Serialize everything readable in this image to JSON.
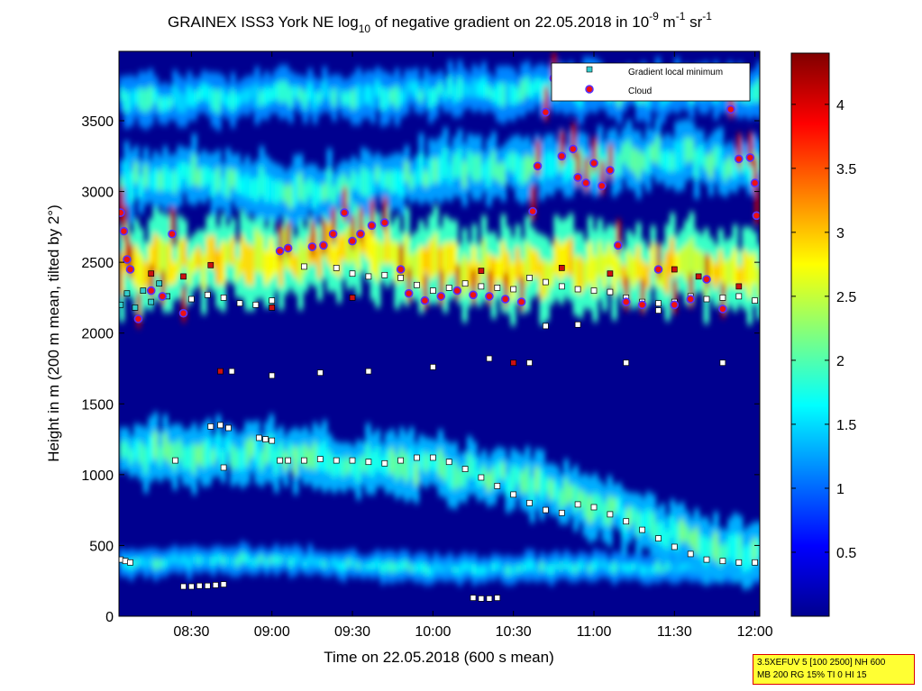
{
  "chart_data": {
    "type": "heatmap",
    "title": {
      "prefix": "GRAINEX ISS3 York NE log",
      "sub": "10",
      "middle": " of negative gradient on 22.05.2018 in 10",
      "exp1": "-9",
      "unit1": " m",
      "exp2": "-1",
      "unit2": " sr",
      "exp3": "-1"
    },
    "xlabel": "Time on 22.05.2018 (600 s mean)",
    "ylabel": "Height in m (200 m mean, tilted by 2°)",
    "x_ticks": [
      "08:30",
      "09:00",
      "09:30",
      "10:00",
      "10:30",
      "11:00",
      "11:30",
      "12:00"
    ],
    "x_tick_hours": [
      8.5,
      9.0,
      9.5,
      10.0,
      10.5,
      11.0,
      11.5,
      12.0
    ],
    "xlim_hours": [
      8.05,
      12.03
    ],
    "y_ticks": [
      "0",
      "500",
      "1000",
      "1500",
      "2000",
      "2500",
      "3000",
      "3500"
    ],
    "y_tick_values": [
      0,
      500,
      1000,
      1500,
      2000,
      2500,
      3000,
      3500
    ],
    "ylim": [
      0,
      3990
    ],
    "colorbar": {
      "tick_labels": [
        "0.5",
        "1",
        "1.5",
        "2",
        "2.5",
        "3",
        "3.5",
        "4"
      ],
      "tick_values": [
        0.5,
        1,
        1.5,
        2,
        2.5,
        3,
        3.5,
        4
      ],
      "range": [
        0,
        4.4
      ],
      "colormap": "jet"
    },
    "legend": {
      "placement": "top-right",
      "entries": [
        {
          "label": "Gradient local minimum",
          "marker": "square",
          "color": "#33cccc"
        },
        {
          "label": "Cloud",
          "marker": "circle",
          "color": "#ee1111",
          "edge": "#5533ff"
        }
      ]
    },
    "layers": [
      {
        "name": "surface-band",
        "t0": 8.05,
        "t1": 12.03,
        "h": [
          [
            8.05,
            380
          ],
          [
            9.0,
            400
          ],
          [
            10.0,
            330
          ],
          [
            11.0,
            350
          ],
          [
            12.03,
            330
          ]
        ],
        "thickness": 130,
        "value": 1.6
      },
      {
        "name": "boundary-layer-aerosol",
        "t0": 8.05,
        "t1": 12.03,
        "h": [
          [
            8.05,
            1150
          ],
          [
            8.6,
            1170
          ],
          [
            9.0,
            1130
          ],
          [
            9.5,
            1080
          ],
          [
            10.0,
            1050
          ],
          [
            10.3,
            1010
          ],
          [
            10.6,
            930
          ],
          [
            10.8,
            860
          ],
          [
            11.0,
            780
          ],
          [
            11.3,
            660
          ],
          [
            11.6,
            520
          ],
          [
            12.03,
            430
          ]
        ],
        "thickness": 360,
        "value": 1.85
      },
      {
        "name": "elevated-layer",
        "t0": 8.05,
        "t1": 12.03,
        "h": [
          [
            8.05,
            2480
          ],
          [
            8.5,
            2500
          ],
          [
            9.0,
            2520
          ],
          [
            9.5,
            2600
          ],
          [
            10.0,
            2500
          ],
          [
            10.5,
            2440
          ],
          [
            11.0,
            2480
          ],
          [
            11.5,
            2460
          ],
          [
            12.03,
            2420
          ]
        ],
        "thickness": 520,
        "value": 2.7
      },
      {
        "name": "upper-layer",
        "t0": 8.05,
        "t1": 12.03,
        "h": [
          [
            8.05,
            3080
          ],
          [
            8.5,
            3120
          ],
          [
            9.0,
            3000
          ],
          [
            9.5,
            3040
          ],
          [
            10.0,
            3150
          ],
          [
            10.5,
            3180
          ],
          [
            11.0,
            3200
          ],
          [
            11.5,
            3260
          ],
          [
            12.03,
            3150
          ]
        ],
        "thickness": 360,
        "value": 1.75
      },
      {
        "name": "top-patches",
        "t0": 8.05,
        "t1": 12.03,
        "h": [
          [
            8.05,
            3650
          ],
          [
            9.0,
            3680
          ],
          [
            10.0,
            3700
          ],
          [
            11.0,
            3720
          ],
          [
            12.03,
            3700
          ]
        ],
        "thickness": 280,
        "value": 1.6
      }
    ],
    "series": [
      {
        "name": "Gradient local minimum",
        "marker": "square",
        "points": [
          [
            8.06,
            400
          ],
          [
            8.09,
            390
          ],
          [
            8.12,
            380
          ],
          [
            8.45,
            210
          ],
          [
            8.5,
            210
          ],
          [
            8.55,
            215
          ],
          [
            8.6,
            215
          ],
          [
            8.65,
            220
          ],
          [
            8.7,
            225
          ],
          [
            8.62,
            1340
          ],
          [
            8.68,
            1350
          ],
          [
            8.73,
            1330
          ],
          [
            8.92,
            1260
          ],
          [
            8.96,
            1250
          ],
          [
            9.0,
            1240
          ],
          [
            9.05,
            1100
          ],
          [
            9.1,
            1100
          ],
          [
            9.2,
            1100
          ],
          [
            9.3,
            1110
          ],
          [
            9.4,
            1100
          ],
          [
            9.5,
            1100
          ],
          [
            9.6,
            1090
          ],
          [
            9.7,
            1080
          ],
          [
            9.8,
            1100
          ],
          [
            9.9,
            1120
          ],
          [
            10.0,
            1120
          ],
          [
            10.1,
            1090
          ],
          [
            10.2,
            1040
          ],
          [
            10.3,
            980
          ],
          [
            10.4,
            920
          ],
          [
            10.5,
            860
          ],
          [
            10.6,
            800
          ],
          [
            10.7,
            750
          ],
          [
            10.8,
            730
          ],
          [
            10.9,
            790
          ],
          [
            11.0,
            770
          ],
          [
            11.1,
            720
          ],
          [
            11.2,
            670
          ],
          [
            11.3,
            610
          ],
          [
            11.4,
            550
          ],
          [
            11.5,
            490
          ],
          [
            11.6,
            440
          ],
          [
            11.7,
            400
          ],
          [
            11.8,
            390
          ],
          [
            11.9,
            380
          ],
          [
            12.0,
            380
          ],
          [
            10.25,
            130
          ],
          [
            10.3,
            125
          ],
          [
            10.35,
            125
          ],
          [
            10.4,
            130
          ],
          [
            8.5,
            2240
          ],
          [
            8.6,
            2270
          ],
          [
            8.7,
            2250
          ],
          [
            8.8,
            2210
          ],
          [
            8.9,
            2200
          ],
          [
            9.0,
            2230
          ],
          [
            9.2,
            2470
          ],
          [
            9.4,
            2460
          ],
          [
            9.5,
            2420
          ],
          [
            9.6,
            2400
          ],
          [
            9.7,
            2410
          ],
          [
            9.8,
            2390
          ],
          [
            9.9,
            2340
          ],
          [
            10.0,
            2300
          ],
          [
            10.1,
            2320
          ],
          [
            10.2,
            2350
          ],
          [
            10.3,
            2330
          ],
          [
            10.4,
            2320
          ],
          [
            10.5,
            2310
          ],
          [
            10.6,
            2390
          ],
          [
            10.7,
            2360
          ],
          [
            10.8,
            2330
          ],
          [
            10.9,
            2310
          ],
          [
            11.0,
            2300
          ],
          [
            11.1,
            2290
          ],
          [
            11.2,
            2250
          ],
          [
            11.3,
            2220
          ],
          [
            11.4,
            2210
          ],
          [
            11.5,
            2220
          ],
          [
            11.6,
            2260
          ],
          [
            11.7,
            2240
          ],
          [
            11.8,
            2250
          ],
          [
            11.9,
            2260
          ],
          [
            12.0,
            2230
          ],
          [
            8.06,
            2200
          ],
          [
            8.1,
            2280
          ],
          [
            8.15,
            2180
          ],
          [
            8.2,
            2300
          ],
          [
            8.25,
            2220
          ],
          [
            8.3,
            2350
          ],
          [
            8.35,
            2260
          ],
          [
            8.75,
            1730
          ],
          [
            9.0,
            1700
          ],
          [
            9.3,
            1720
          ],
          [
            9.6,
            1730
          ],
          [
            10.0,
            1760
          ],
          [
            10.6,
            1790
          ],
          [
            11.2,
            1790
          ],
          [
            8.7,
            1050
          ],
          [
            8.4,
            1100
          ],
          [
            10.35,
            1820
          ],
          [
            10.7,
            2050
          ],
          [
            10.9,
            2060
          ],
          [
            11.4,
            2160
          ],
          [
            11.8,
            1790
          ]
        ]
      },
      {
        "name": "Cloud",
        "marker": "circle",
        "points": [
          [
            8.06,
            2850
          ],
          [
            8.08,
            2720
          ],
          [
            8.1,
            2520
          ],
          [
            8.12,
            2450
          ],
          [
            8.17,
            2100
          ],
          [
            8.25,
            2300
          ],
          [
            8.32,
            2260
          ],
          [
            8.38,
            2700
          ],
          [
            8.45,
            2140
          ],
          [
            9.05,
            2580
          ],
          [
            9.1,
            2600
          ],
          [
            9.25,
            2610
          ],
          [
            9.32,
            2620
          ],
          [
            9.38,
            2700
          ],
          [
            9.45,
            2850
          ],
          [
            9.5,
            2650
          ],
          [
            9.55,
            2700
          ],
          [
            9.62,
            2760
          ],
          [
            9.7,
            2780
          ],
          [
            9.8,
            2450
          ],
          [
            9.85,
            2280
          ],
          [
            9.95,
            2230
          ],
          [
            10.05,
            2260
          ],
          [
            10.15,
            2300
          ],
          [
            10.25,
            2270
          ],
          [
            10.35,
            2260
          ],
          [
            10.45,
            2240
          ],
          [
            10.55,
            2220
          ],
          [
            10.62,
            2860
          ],
          [
            10.65,
            3180
          ],
          [
            10.7,
            3560
          ],
          [
            10.75,
            3800
          ],
          [
            10.8,
            3250
          ],
          [
            10.87,
            3300
          ],
          [
            10.9,
            3100
          ],
          [
            10.95,
            3060
          ],
          [
            11.0,
            3200
          ],
          [
            11.05,
            3040
          ],
          [
            11.1,
            3150
          ],
          [
            11.15,
            2620
          ],
          [
            11.2,
            2220
          ],
          [
            11.3,
            2200
          ],
          [
            11.4,
            2450
          ],
          [
            11.5,
            2200
          ],
          [
            11.6,
            2240
          ],
          [
            11.7,
            2380
          ],
          [
            11.8,
            2170
          ],
          [
            11.85,
            3580
          ],
          [
            11.9,
            3230
          ],
          [
            11.97,
            3240
          ],
          [
            12.0,
            3060
          ],
          [
            12.01,
            2830
          ]
        ]
      },
      {
        "name": "Cloud (red squares)",
        "marker": "square-red",
        "points": [
          [
            8.25,
            2420
          ],
          [
            8.45,
            2400
          ],
          [
            8.62,
            2480
          ],
          [
            8.68,
            1730
          ],
          [
            9.0,
            2180
          ],
          [
            9.5,
            2250
          ],
          [
            10.3,
            2440
          ],
          [
            10.5,
            1790
          ],
          [
            10.8,
            2460
          ],
          [
            11.1,
            2420
          ],
          [
            11.5,
            2450
          ],
          [
            11.65,
            2400
          ],
          [
            11.9,
            2330
          ]
        ]
      }
    ]
  },
  "info_box": {
    "line1": "3.5XEFUV 5 [100 2500] NH 600",
    "line2": "MB 200 RG 15% TI 0 HI 15"
  }
}
